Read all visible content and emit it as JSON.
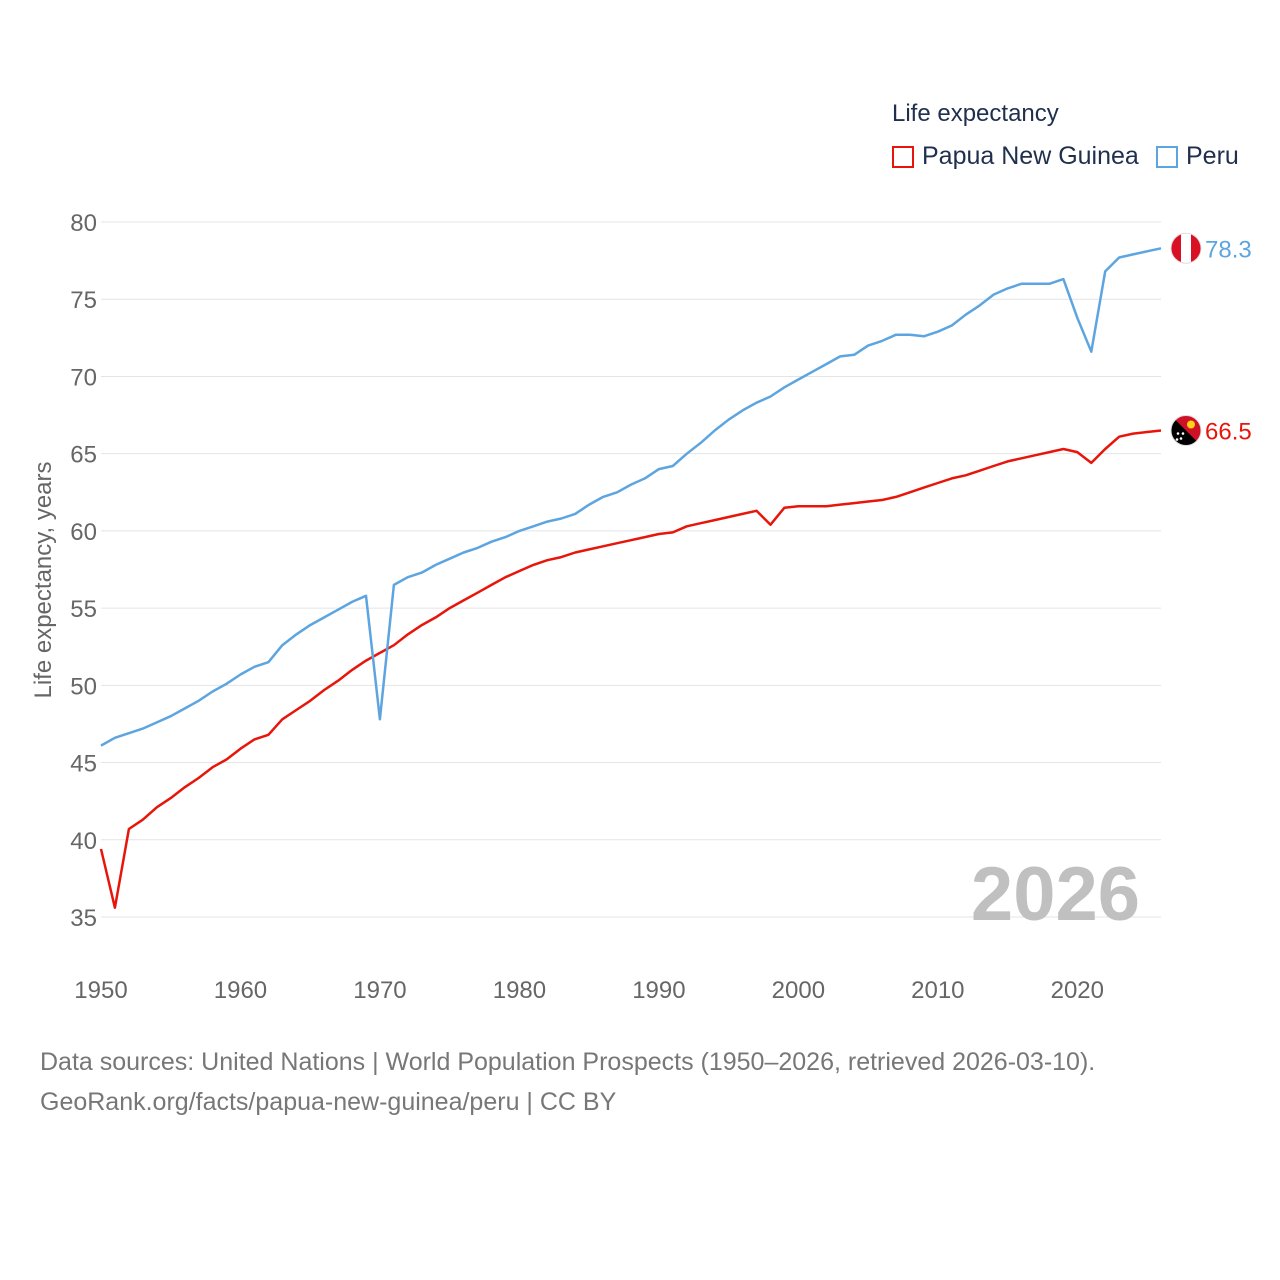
{
  "legend": {
    "title": "Life expectancy",
    "items": [
      {
        "label": "Papua New Guinea",
        "color": "#e8150b"
      },
      {
        "label": "Peru",
        "color": "#5da5e0"
      }
    ]
  },
  "source": {
    "line1": "Data sources: United Nations | World Population Prospects (1950–2026, retrieved 2026-03-10).",
    "line2": "GeoRank.org/facts/papua-new-guinea/peru | CC BY"
  },
  "chart_data": {
    "type": "line",
    "title": "Life expectancy",
    "ylabel": "Life expectancy, years",
    "xlabel": "",
    "xlim": [
      1950,
      2026
    ],
    "ylim": [
      35,
      80
    ],
    "x_ticks": [
      1950,
      1960,
      1970,
      1980,
      1990,
      2000,
      2010,
      2020
    ],
    "y_ticks": [
      35,
      40,
      45,
      50,
      55,
      60,
      65,
      70,
      75,
      80
    ],
    "year_label": "2026",
    "series": [
      {
        "name": "Papua New Guinea",
        "color": "#e8150b",
        "end_label": "66.5",
        "flag": "papua-new-guinea-flag",
        "x": [
          1950,
          1951,
          1952,
          1953,
          1954,
          1955,
          1956,
          1957,
          1958,
          1959,
          1960,
          1961,
          1962,
          1963,
          1964,
          1965,
          1966,
          1967,
          1968,
          1969,
          1970,
          1971,
          1972,
          1973,
          1974,
          1975,
          1976,
          1977,
          1978,
          1979,
          1980,
          1981,
          1982,
          1983,
          1984,
          1985,
          1986,
          1987,
          1988,
          1989,
          1990,
          1991,
          1992,
          1993,
          1994,
          1995,
          1996,
          1997,
          1998,
          1999,
          2000,
          2001,
          2002,
          2003,
          2004,
          2005,
          2006,
          2007,
          2008,
          2009,
          2010,
          2011,
          2012,
          2013,
          2014,
          2015,
          2016,
          2017,
          2018,
          2019,
          2020,
          2021,
          2022,
          2023,
          2024,
          2025,
          2026
        ],
        "values": [
          39.4,
          35.6,
          40.7,
          41.3,
          42.1,
          42.7,
          43.4,
          44.0,
          44.7,
          45.2,
          45.9,
          46.5,
          46.8,
          47.8,
          48.4,
          49.0,
          49.7,
          50.3,
          51.0,
          51.6,
          52.1,
          52.6,
          53.3,
          53.9,
          54.4,
          55.0,
          55.5,
          56.0,
          56.5,
          57.0,
          57.4,
          57.8,
          58.1,
          58.3,
          58.6,
          58.8,
          59.0,
          59.2,
          59.4,
          59.6,
          59.8,
          59.9,
          60.3,
          60.5,
          60.7,
          60.9,
          61.1,
          61.3,
          60.4,
          61.5,
          61.6,
          61.6,
          61.6,
          61.7,
          61.8,
          61.9,
          62.0,
          62.2,
          62.5,
          62.8,
          63.1,
          63.4,
          63.6,
          63.9,
          64.2,
          64.5,
          64.7,
          64.9,
          65.1,
          65.3,
          65.1,
          64.4,
          65.3,
          66.1,
          66.3,
          66.4,
          66.5
        ]
      },
      {
        "name": "Peru",
        "color": "#5da5e0",
        "end_label": "78.3",
        "flag": "peru-flag",
        "x": [
          1950,
          1951,
          1952,
          1953,
          1954,
          1955,
          1956,
          1957,
          1958,
          1959,
          1960,
          1961,
          1962,
          1963,
          1964,
          1965,
          1966,
          1967,
          1968,
          1969,
          1970,
          1971,
          1972,
          1973,
          1974,
          1975,
          1976,
          1977,
          1978,
          1979,
          1980,
          1981,
          1982,
          1983,
          1984,
          1985,
          1986,
          1987,
          1988,
          1989,
          1990,
          1991,
          1992,
          1993,
          1994,
          1995,
          1996,
          1997,
          1998,
          1999,
          2000,
          2001,
          2002,
          2003,
          2004,
          2005,
          2006,
          2007,
          2008,
          2009,
          2010,
          2011,
          2012,
          2013,
          2014,
          2015,
          2016,
          2017,
          2018,
          2019,
          2020,
          2021,
          2022,
          2023,
          2024,
          2025,
          2026
        ],
        "values": [
          46.1,
          46.6,
          46.9,
          47.2,
          47.6,
          48.0,
          48.5,
          49.0,
          49.6,
          50.1,
          50.7,
          51.2,
          51.5,
          52.6,
          53.3,
          53.9,
          54.4,
          54.9,
          55.4,
          55.8,
          47.8,
          56.5,
          57.0,
          57.3,
          57.8,
          58.2,
          58.6,
          58.9,
          59.3,
          59.6,
          60.0,
          60.3,
          60.6,
          60.8,
          61.1,
          61.7,
          62.2,
          62.5,
          63.0,
          63.4,
          64.0,
          64.2,
          65.0,
          65.7,
          66.5,
          67.2,
          67.8,
          68.3,
          68.7,
          69.3,
          69.8,
          70.3,
          70.8,
          71.3,
          71.4,
          72.0,
          72.3,
          72.7,
          72.7,
          72.6,
          72.9,
          73.3,
          74.0,
          74.6,
          75.3,
          75.7,
          76.0,
          76.0,
          76.0,
          76.3,
          73.8,
          71.6,
          76.8,
          77.7,
          77.9,
          78.1,
          78.3
        ]
      }
    ]
  }
}
